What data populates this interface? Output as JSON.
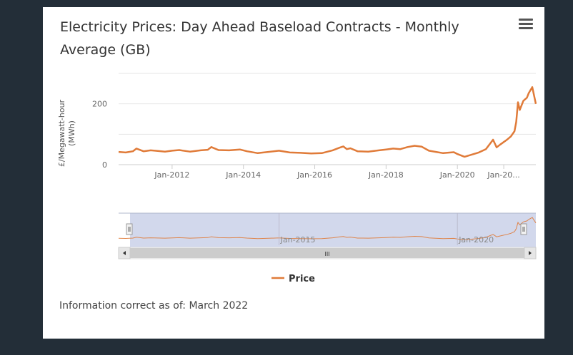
{
  "chart_data": {
    "type": "line",
    "title": "Electricity Prices: Day Ahead Baseload Contracts - Monthly Average (GB)",
    "ylabel": "£/Megawatt-hour (MWh)",
    "xlabel": "",
    "ylim": [
      0,
      300
    ],
    "xlim": [
      2010.5,
      2022.2
    ],
    "y_ticks": [
      0,
      200
    ],
    "x_ticks": [
      {
        "value": 2012,
        "label": "Jan-2012"
      },
      {
        "value": 2014,
        "label": "Jan-2014"
      },
      {
        "value": 2016,
        "label": "Jan-2016"
      },
      {
        "value": 2018,
        "label": "Jan-2018"
      },
      {
        "value": 2020,
        "label": "Jan-2020"
      },
      {
        "value": 2021.3,
        "label": "Jan-20..."
      }
    ],
    "navigator_ticks": [
      {
        "value": 2015,
        "label": "Jan-2015"
      },
      {
        "value": 2020,
        "label": "Jan-2020"
      }
    ],
    "grid": true,
    "legend_position": "bottom-center",
    "series": [
      {
        "name": "Price",
        "color": "#e07b39",
        "x": [
          2010.5,
          2010.7,
          2010.9,
          2011.0,
          2011.2,
          2011.4,
          2011.6,
          2011.8,
          2012.0,
          2012.2,
          2012.5,
          2012.8,
          2013.0,
          2013.1,
          2013.3,
          2013.6,
          2013.9,
          2014.1,
          2014.4,
          2014.7,
          2015.0,
          2015.3,
          2015.6,
          2015.9,
          2016.2,
          2016.5,
          2016.7,
          2016.8,
          2016.9,
          2017.0,
          2017.2,
          2017.5,
          2017.8,
          2018.0,
          2018.2,
          2018.4,
          2018.6,
          2018.8,
          2019.0,
          2019.2,
          2019.4,
          2019.6,
          2019.9,
          2020.0,
          2020.2,
          2020.4,
          2020.6,
          2020.8,
          2021.0,
          2021.1,
          2021.2,
          2021.4,
          2021.5,
          2021.6,
          2021.65,
          2021.7,
          2021.75,
          2021.85,
          2021.95,
          2022.0,
          2022.1,
          2022.2
        ],
        "values": [
          42,
          40,
          44,
          53,
          44,
          47,
          45,
          43,
          46,
          48,
          43,
          47,
          49,
          58,
          48,
          47,
          50,
          44,
          38,
          42,
          46,
          40,
          39,
          37,
          38,
          47,
          56,
          60,
          51,
          54,
          44,
          43,
          47,
          50,
          53,
          51,
          58,
          62,
          59,
          46,
          42,
          38,
          41,
          35,
          26,
          33,
          40,
          51,
          82,
          57,
          66,
          83,
          93,
          110,
          140,
          205,
          180,
          210,
          220,
          235,
          255,
          200
        ]
      }
    ]
  },
  "legend": {
    "price_label": "Price"
  },
  "navigator": {
    "scrollbar_grip": "III"
  },
  "footer": {
    "info": "Information correct as of: March 2022"
  },
  "colors": {
    "series": "#e07b39",
    "navigator_mask": "#cdd4ea",
    "background": "#232e38"
  },
  "title_lines": [
    "Electricity Prices: Day Ahead Baseload Contracts - Monthly",
    "Average (GB)"
  ],
  "y_axis_lines": [
    "£/Megawatt-hour",
    "(MWh)"
  ],
  "icons": {
    "menu": "hamburger-menu-icon"
  }
}
